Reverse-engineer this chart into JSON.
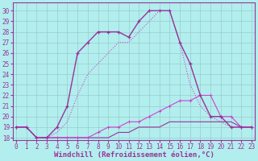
{
  "hours": [
    0,
    1,
    2,
    3,
    4,
    5,
    6,
    7,
    8,
    9,
    10,
    11,
    12,
    13,
    14,
    15,
    16,
    17,
    18,
    19,
    20,
    21,
    22,
    23
  ],
  "curve_main_marked": [
    19,
    19,
    18,
    18,
    19,
    21,
    26,
    27,
    28,
    28,
    28,
    27.5,
    29,
    30,
    30,
    30,
    27,
    25,
    22,
    20,
    20,
    19,
    19,
    19
  ],
  "curve_dotted": [
    19,
    19,
    18,
    18,
    18.5,
    19.5,
    22,
    24,
    25,
    26,
    27,
    27,
    28,
    29,
    30,
    30,
    27,
    23,
    21,
    20,
    19.5,
    19,
    19,
    19
  ],
  "curve_upper_flat": [
    19,
    19,
    18,
    18,
    18,
    18,
    18,
    18,
    18.5,
    19,
    19,
    19.5,
    19.5,
    20,
    20.5,
    21,
    21.5,
    21.5,
    22,
    22,
    20,
    20,
    19,
    19
  ],
  "curve_lower_flat": [
    19,
    19,
    18,
    18,
    18,
    18,
    18,
    18,
    18,
    18,
    18.5,
    18.5,
    19,
    19,
    19,
    19.5,
    19.5,
    19.5,
    19.5,
    19.5,
    19.5,
    19.5,
    19,
    19
  ],
  "color_dark": "#993399",
  "color_light": "#cc44cc",
  "bg_color": "#b2eeee",
  "grid_color": "#99cccc",
  "ylim": [
    17.8,
    30.8
  ],
  "yticks": [
    18,
    19,
    20,
    21,
    22,
    23,
    24,
    25,
    26,
    27,
    28,
    29,
    30
  ],
  "xlim": [
    -0.3,
    23.3
  ],
  "xticks": [
    0,
    1,
    2,
    3,
    4,
    5,
    6,
    7,
    8,
    9,
    10,
    11,
    12,
    13,
    14,
    15,
    16,
    17,
    18,
    19,
    20,
    21,
    22,
    23
  ],
  "xlabel": "Windchill (Refroidissement éolien,°C)",
  "tick_fontsize": 5.5,
  "xlabel_fontsize": 6.5,
  "linewidth_main": 1.0,
  "linewidth_secondary": 0.8
}
